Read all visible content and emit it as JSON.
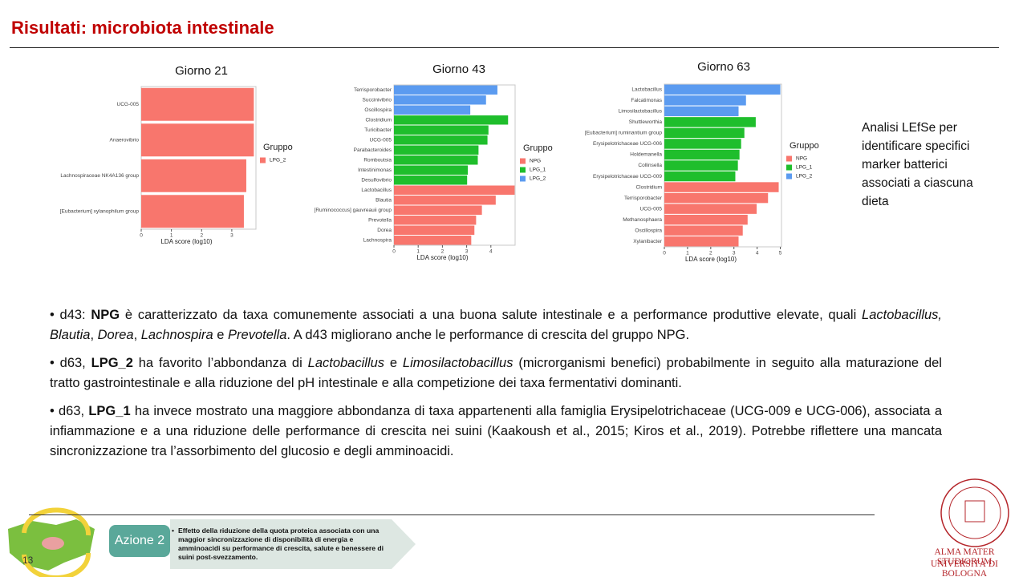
{
  "header": {
    "title": "Risultati: microbiota intestinale"
  },
  "chart_data": [
    {
      "type": "bar",
      "orientation": "horizontal",
      "title": "Giorno 21",
      "x_label": "LDA score (log10)",
      "legend_title": "Gruppo",
      "categories": [
        "UCG-005",
        "Anaerovibrio",
        "Lachnospiraceae NK4A136 group",
        "[Eubacterium] xylanophilum group"
      ],
      "series": [
        {
          "name": "LPG_2",
          "color": "#f8766d",
          "values": [
            3.73,
            3.73,
            3.48,
            3.4
          ]
        }
      ],
      "xlim": [
        0,
        3.8
      ],
      "xticks": [
        0,
        1,
        2,
        3
      ]
    },
    {
      "type": "bar",
      "orientation": "horizontal",
      "title": "Giorno 43",
      "x_label": "LDA score (log10)",
      "legend_title": "Gruppo",
      "categories": [
        "Terrisporobacter",
        "Succinivibrio",
        "Oscillospira",
        "Clostridium",
        "Turicibacter",
        "UCG-005",
        "Parabacteroides",
        "Romboutsia",
        "Intestinimonas",
        "Desulfovibrio",
        "Lactobacillus",
        "Blautia",
        "[Ruminococcus] gauvreauii group",
        "Prevotella",
        "Dorea",
        "Lachnospira"
      ],
      "series": [
        {
          "name": "NPG",
          "color": "#f8766d",
          "values": [
            null,
            null,
            null,
            null,
            null,
            null,
            null,
            null,
            null,
            null,
            4.98,
            4.2,
            3.63,
            3.39,
            3.32,
            3.19
          ]
        },
        {
          "name": "LPG_1",
          "color": "#1fbe2c",
          "values": [
            null,
            null,
            null,
            4.71,
            3.9,
            3.86,
            3.49,
            3.46,
            3.05,
            3.02,
            null,
            null,
            null,
            null,
            null,
            null
          ]
        },
        {
          "name": "LPG_2",
          "color": "#5b9bf0",
          "values": [
            4.27,
            3.8,
            3.15,
            null,
            null,
            null,
            null,
            null,
            null,
            null,
            null,
            null,
            null,
            null,
            null,
            null
          ]
        }
      ],
      "xlim": [
        0,
        5
      ],
      "xticks": [
        0,
        1,
        2,
        3,
        4
      ]
    },
    {
      "type": "bar",
      "orientation": "horizontal",
      "title": "Giorno 63",
      "x_label": "LDA score (log10)",
      "legend_title": "Gruppo",
      "categories": [
        "Lactobacillus",
        "Falcatimonas",
        "Limosilactobacillus",
        "Shuttleworthia",
        "[Eubacterium] ruminantium group",
        "Erysipelotrichaceae UCG-006",
        "Holdemanella",
        "Collinsella",
        "Erysipelotrichaceae UCG-009",
        "Clostridium",
        "Terrisporobacter",
        "UCG-005",
        "Methanosphaera",
        "Oscillospira",
        "Xylanibacter"
      ],
      "series": [
        {
          "name": "NPG",
          "color": "#f8766d",
          "values": [
            null,
            null,
            null,
            null,
            null,
            null,
            null,
            null,
            null,
            4.93,
            4.47,
            3.98,
            3.59,
            3.38,
            3.2
          ]
        },
        {
          "name": "LPG_1",
          "color": "#1fbe2c",
          "values": [
            null,
            null,
            null,
            3.94,
            3.45,
            3.31,
            3.24,
            3.17,
            3.06,
            null,
            null,
            null,
            null,
            null,
            null
          ]
        },
        {
          "name": "LPG_2",
          "color": "#5b9bf0",
          "values": [
            5.0,
            3.52,
            3.2,
            null,
            null,
            null,
            null,
            null,
            null,
            null,
            null,
            null,
            null,
            null,
            null
          ]
        }
      ],
      "xlim": [
        0,
        5.05
      ],
      "xticks": [
        0,
        1,
        2,
        3,
        4,
        5
      ]
    }
  ],
  "side_note": "Analisi LEfSe per identificare specifici marker batterici associati a ciascuna dieta",
  "bullets": [
    [
      {
        "text": "d43: "
      },
      {
        "text": "NPG",
        "bold": true
      },
      {
        "text": " è caratterizzato da taxa comunemente associati a una buona salute intestinale e a performance produttive elevate, quali "
      },
      {
        "text": "Lactobacillus, Blautia",
        "italic": true
      },
      {
        "text": ", "
      },
      {
        "text": "Dorea",
        "italic": true
      },
      {
        "text": ", "
      },
      {
        "text": "Lachnospira",
        "italic": true
      },
      {
        "text": " e "
      },
      {
        "text": "Prevotella",
        "italic": true
      },
      {
        "text": ". A d43 migliorano anche le performance di crescita del gruppo NPG."
      }
    ],
    [
      {
        "text": "d63, "
      },
      {
        "text": "LPG_2",
        "bold": true
      },
      {
        "text": " ha favorito l’abbondanza di "
      },
      {
        "text": "Lactobacillus",
        "italic": true
      },
      {
        "text": " e "
      },
      {
        "text": "Limosilactobacillus",
        "italic": true
      },
      {
        "text": " (microrganismi benefici) probabilmente in seguito alla maturazione del tratto gastrointestinale e alla riduzione del pH intestinale e alla competizione dei taxa fermentativi dominanti."
      }
    ],
    [
      {
        "text": "d63, "
      },
      {
        "text": "LPG_1",
        "bold": true
      },
      {
        "text": " ha invece mostrato una maggiore abbondanza di taxa appartenenti alla famiglia Erysipelotrichaceae (UCG-009 e UCG-006), associata a infiammazione e a una riduzione delle performance di crescita nei suini (Kaakoush et al., 2015; Kiros et al., 2019). Potrebbe riflettere una mancata sincronizzazione tra l’assorbimento del glucosio e degli amminoacidi."
      }
    ]
  ],
  "footer": {
    "action": "Azione 2",
    "action_text": "Effetto della riduzione della quota proteica associata con una maggior sincronizzazione di disponibilità di energia e amminoacidi su performance di crescita, salute e benessere di suini post-svezzamento.",
    "page_number": "13",
    "logo_line1": "ALMA MATER STUDIORUM",
    "logo_line2": "UNIVERSITÀ DI BOLOGNA"
  }
}
